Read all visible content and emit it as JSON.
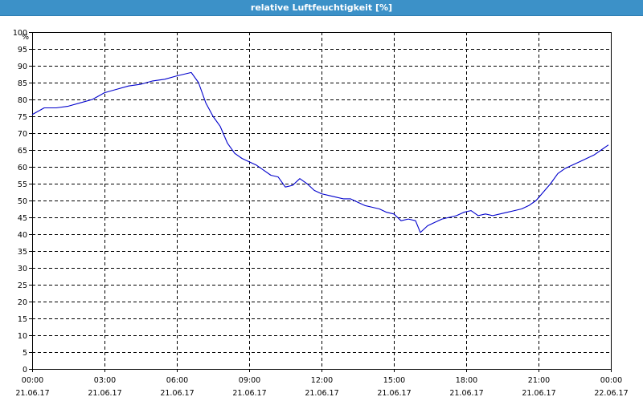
{
  "window": {
    "title": "relative Luftfeuchtigkeit [%]"
  },
  "colors": {
    "title_bar": "#3c91c8",
    "series_line": "#0000cc",
    "grid": "#000000",
    "background": "#ffffff"
  },
  "chart_data": {
    "type": "line",
    "title": "relative Luftfeuchtigkeit [%]",
    "ylabel": "%",
    "xlabel": "",
    "ylim": [
      0,
      100
    ],
    "xlim": [
      0,
      24
    ],
    "yticks": [
      0,
      5,
      10,
      15,
      20,
      25,
      30,
      35,
      40,
      45,
      50,
      55,
      60,
      65,
      70,
      75,
      80,
      85,
      90,
      95,
      100
    ],
    "xticks": [
      {
        "time": "00:00",
        "date": "21.06.17",
        "hour": 0
      },
      {
        "time": "03:00",
        "date": "21.06.17",
        "hour": 3
      },
      {
        "time": "06:00",
        "date": "21.06.17",
        "hour": 6
      },
      {
        "time": "09:00",
        "date": "21.06.17",
        "hour": 9
      },
      {
        "time": "12:00",
        "date": "21.06.17",
        "hour": 12
      },
      {
        "time": "15:00",
        "date": "21.06.17",
        "hour": 15
      },
      {
        "time": "18:00",
        "date": "21.06.17",
        "hour": 18
      },
      {
        "time": "21:00",
        "date": "21.06.17",
        "hour": 21
      },
      {
        "time": "00:00",
        "date": "22.06.17",
        "hour": 24
      }
    ],
    "grid": true,
    "series": [
      {
        "x": [
          0,
          0.5,
          1,
          1.5,
          2,
          2.5,
          3,
          3.5,
          4,
          4.5,
          5,
          5.5,
          6,
          6.3,
          6.6,
          6.9,
          7.2,
          7.5,
          7.8,
          8.1,
          8.4,
          8.7,
          9,
          9.3,
          9.6,
          9.9,
          10.2,
          10.5,
          10.8,
          11.1,
          11.4,
          11.7,
          12,
          12.3,
          12.6,
          12.9,
          13.2,
          13.5,
          13.8,
          14.1,
          14.4,
          14.7,
          15,
          15.3,
          15.6,
          15.9,
          16.1,
          16.4,
          16.7,
          17,
          17.3,
          17.6,
          17.9,
          18.2,
          18.5,
          18.8,
          19.1,
          19.4,
          19.7,
          20,
          20.3,
          20.6,
          20.9,
          21.2,
          21.5,
          21.8,
          22.1,
          22.4,
          22.7,
          23,
          23.3,
          23.6,
          23.9
        ],
        "values": [
          75.5,
          77.5,
          77.5,
          78,
          79,
          80,
          82,
          83,
          84,
          84.5,
          85.5,
          86,
          87,
          87.5,
          88,
          85,
          79,
          75,
          72,
          67,
          64,
          62.5,
          61.5,
          60.5,
          59,
          57.5,
          57,
          54,
          54.5,
          56.5,
          55,
          53,
          52,
          51.5,
          51,
          50.5,
          50.5,
          49.5,
          48.5,
          48,
          47.5,
          46.5,
          46,
          44,
          44.5,
          44,
          40.5,
          42.5,
          43.5,
          44.5,
          45,
          45.5,
          46.5,
          47,
          45.5,
          46,
          45.5,
          46,
          46.5,
          47,
          47.5,
          48.5,
          50,
          52.5,
          55,
          58,
          59.5,
          60.5,
          61.5,
          62.5,
          63.5,
          65,
          66.5
        ]
      }
    ]
  }
}
